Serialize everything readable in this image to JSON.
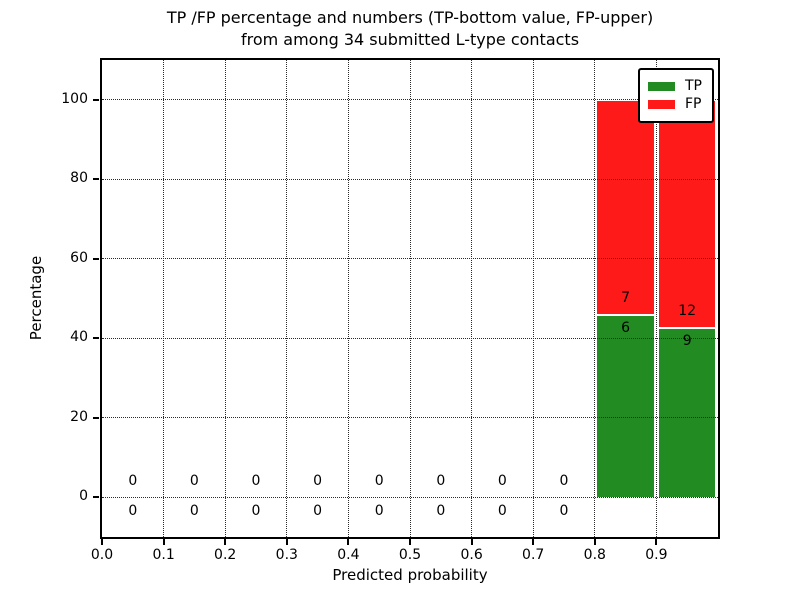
{
  "title": {
    "line1": "TP /FP percentage and numbers (TP-bottom value, FP-upper)",
    "line2": "from among 34 submitted L-type contacts"
  },
  "chart_data": {
    "type": "bar",
    "subtype": "stacked-percentage-histogram",
    "title": "TP /FP percentage and numbers (TP-bottom value, FP-upper) from among 34 submitted L-type contacts",
    "xlabel": "Predicted probability",
    "ylabel": "Percentage",
    "xlim": [
      0.0,
      1.0
    ],
    "ylim": [
      -10,
      110
    ],
    "xticks": [
      {
        "value": 0.0,
        "label": "0.0"
      },
      {
        "value": 0.1,
        "label": "0.1"
      },
      {
        "value": 0.2,
        "label": "0.2"
      },
      {
        "value": 0.3,
        "label": "0.3"
      },
      {
        "value": 0.4,
        "label": "0.4"
      },
      {
        "value": 0.5,
        "label": "0.5"
      },
      {
        "value": 0.6,
        "label": "0.6"
      },
      {
        "value": 0.7,
        "label": "0.7"
      },
      {
        "value": 0.8,
        "label": "0.8"
      },
      {
        "value": 0.9,
        "label": "0.9"
      }
    ],
    "yticks": [
      {
        "value": 0,
        "label": "0"
      },
      {
        "value": 20,
        "label": "20"
      },
      {
        "value": 40,
        "label": "40"
      },
      {
        "value": 60,
        "label": "60"
      },
      {
        "value": 80,
        "label": "80"
      },
      {
        "value": 100,
        "label": "100"
      }
    ],
    "grid": {
      "visible": true,
      "style": "dotted",
      "over_bars": true
    },
    "legend": {
      "position": "upper-right",
      "entries": [
        {
          "label": "TP",
          "color": "#228b22"
        },
        {
          "label": "FP",
          "color": "#ff1a1a"
        }
      ]
    },
    "total_contacts": 34,
    "bins": [
      {
        "x0": 0.0,
        "x1": 0.1,
        "tp": 0,
        "fp": 0
      },
      {
        "x0": 0.1,
        "x1": 0.2,
        "tp": 0,
        "fp": 0
      },
      {
        "x0": 0.2,
        "x1": 0.3,
        "tp": 0,
        "fp": 0
      },
      {
        "x0": 0.3,
        "x1": 0.4,
        "tp": 0,
        "fp": 0
      },
      {
        "x0": 0.4,
        "x1": 0.5,
        "tp": 0,
        "fp": 0
      },
      {
        "x0": 0.5,
        "x1": 0.6,
        "tp": 0,
        "fp": 0
      },
      {
        "x0": 0.6,
        "x1": 0.7,
        "tp": 0,
        "fp": 0
      },
      {
        "x0": 0.7,
        "x1": 0.8,
        "tp": 0,
        "fp": 0
      },
      {
        "x0": 0.8,
        "x1": 0.9,
        "tp": 6,
        "fp": 7
      },
      {
        "x0": 0.9,
        "x1": 1.0,
        "tp": 9,
        "fp": 12
      }
    ]
  },
  "colors": {
    "tp": "#228b22",
    "fp": "#ff1a1a",
    "grid": "#2a2a2a",
    "spine": "#000000",
    "background": "#ffffff"
  }
}
